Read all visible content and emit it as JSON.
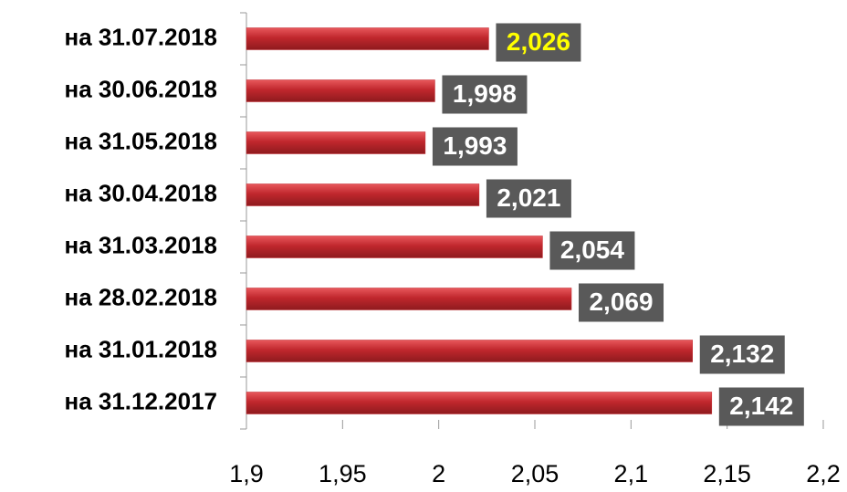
{
  "chart_data": {
    "type": "hbar",
    "categories": [
      "на 31.07.2018",
      "на 30.06.2018",
      "на 31.05.2018",
      "на 30.04.2018",
      "на 31.03.2018",
      "на 28.02.2018",
      "на 31.01.2018",
      "на 31.12.2017"
    ],
    "values": [
      2.026,
      1.998,
      1.993,
      2.021,
      2.054,
      2.069,
      2.132,
      2.142
    ],
    "value_labels": [
      "2,026",
      "1,998",
      "1,993",
      "2,021",
      "2,054",
      "2,069",
      "2,132",
      "2,142"
    ],
    "value_label_colors": [
      "#ffff00",
      "#ffffff",
      "#ffffff",
      "#ffffff",
      "#ffffff",
      "#ffffff",
      "#ffffff",
      "#ffffff"
    ],
    "label_background": "#595959",
    "color": "#c0272d",
    "xlim": [
      1.9,
      2.2
    ],
    "xticks": [
      {
        "value": 1.9,
        "label": "1,9"
      },
      {
        "value": 1.95,
        "label": "1,95"
      },
      2,
      {
        "value": 2.05,
        "label": "2,05"
      },
      {
        "value": 2.1,
        "label": "2,1"
      },
      {
        "value": 2.15,
        "label": "2,15"
      },
      {
        "value": 2.2,
        "label": "2,2"
      }
    ],
    "grid": false
  }
}
